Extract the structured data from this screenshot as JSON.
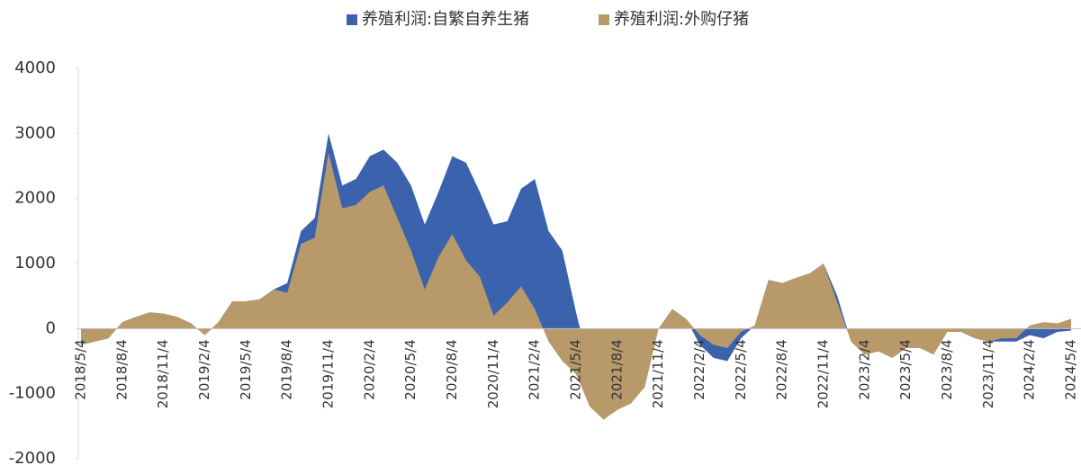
{
  "chart_data": {
    "type": "area",
    "categories": [
      "2018/5/4",
      null,
      null,
      "2018/8/4",
      null,
      null,
      "2018/11/4",
      null,
      null,
      "2019/2/4",
      null,
      null,
      "2019/5/4",
      null,
      null,
      "2019/8/4",
      null,
      null,
      "2019/11/4",
      null,
      null,
      "2020/2/4",
      null,
      null,
      "2020/5/4",
      null,
      null,
      "2020/8/4",
      null,
      null,
      "2020/11/4",
      null,
      null,
      "2021/2/4",
      null,
      null,
      "2021/5/4",
      null,
      null,
      "2021/8/4",
      null,
      null,
      "2021/11/4",
      null,
      null,
      "2022/2/4",
      null,
      null,
      "2022/5/4",
      null,
      null,
      "2022/8/4",
      null,
      null,
      "2022/11/4",
      null,
      null,
      "2023/2/4",
      null,
      null,
      "2023/5/4",
      null,
      null,
      "2023/8/4",
      null,
      null,
      "2023/11/4",
      null,
      null,
      "2024/2/4",
      null,
      null,
      "2024/5/4"
    ],
    "series": [
      {
        "name": "养殖利润:自繁自养生猪",
        "color": "#3a62ad",
        "values": [
          -250,
          -200,
          -150,
          100,
          180,
          250,
          230,
          180,
          80,
          -100,
          100,
          420,
          420,
          450,
          600,
          700,
          1500,
          1700,
          3000,
          2200,
          2300,
          2650,
          2750,
          2550,
          2200,
          1600,
          2100,
          2650,
          2550,
          2100,
          1600,
          1650,
          2150,
          2300,
          1500,
          1200,
          250,
          -600,
          -1100,
          -1100,
          -1050,
          -800,
          0,
          300,
          150,
          -250,
          -450,
          -500,
          -150,
          50,
          750,
          700,
          780,
          850,
          1000,
          500,
          -200,
          -400,
          -350,
          -450,
          -300,
          -250,
          -400,
          0,
          -50,
          -150,
          -200,
          -200,
          -200,
          -100,
          -150,
          -50,
          -30
        ]
      },
      {
        "name": "养殖利润:外购仔猪",
        "color": "#b89a6a",
        "values": [
          -250,
          -200,
          -150,
          100,
          180,
          250,
          230,
          180,
          80,
          -100,
          100,
          420,
          420,
          450,
          600,
          550,
          1300,
          1400,
          2700,
          1850,
          1900,
          2100,
          2200,
          1700,
          1200,
          600,
          1100,
          1450,
          1050,
          800,
          200,
          400,
          650,
          300,
          -200,
          -500,
          -700,
          -1200,
          -1400,
          -1250,
          -1150,
          -900,
          0,
          300,
          150,
          -100,
          -250,
          -300,
          -50,
          50,
          750,
          700,
          780,
          850,
          1000,
          400,
          -200,
          -400,
          -350,
          -450,
          -300,
          -300,
          -400,
          -50,
          -50,
          -150,
          -200,
          -150,
          -150,
          50,
          100,
          80,
          150
        ]
      }
    ],
    "ylim": [
      -2000,
      4000
    ],
    "yticks": [
      -2000,
      -1000,
      0,
      1000,
      2000,
      3000,
      4000
    ]
  }
}
